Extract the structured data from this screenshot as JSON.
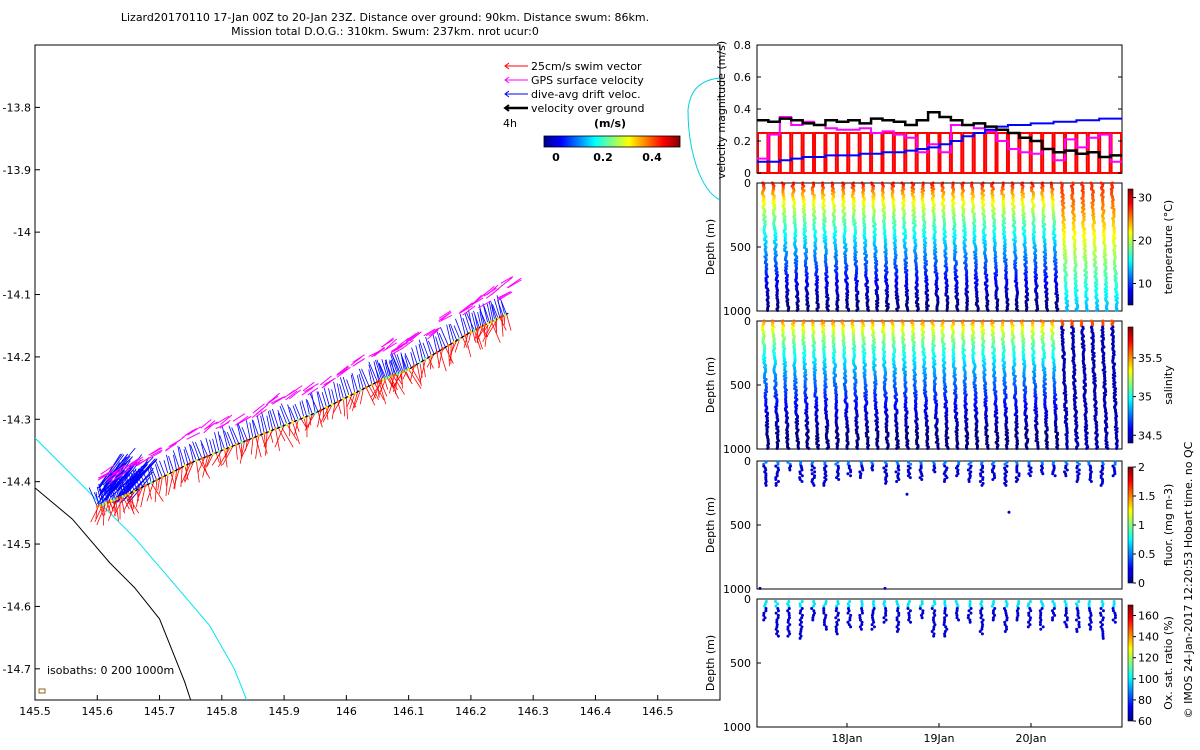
{
  "header": {
    "title_line1": "Lizard20170110 17-Jan 00Z to 20-Jan 23Z. Distance over ground: 90km. Distance swum: 86km.",
    "title_line2": "Mission total D.O.G.: 310km. Swum: 237km. nrot ucur:0"
  },
  "footer_stamp": "© IMOS 24-Jan-2017 12:20:53 Hobart time. no QC",
  "chart_data": [
    {
      "type": "scatter",
      "name": "glider-track-map",
      "xlim": [
        145.5,
        146.6
      ],
      "ylim": [
        -14.75,
        -13.7
      ],
      "xticks": [
        "145.5",
        "145.6",
        "145.7",
        "145.8",
        "145.9",
        "146",
        "146.1",
        "146.2",
        "146.3",
        "146.4",
        "146.5"
      ],
      "yticks": [
        "-13.8",
        "-13.9",
        "-14",
        "-14.1",
        "-14.2",
        "-14.3",
        "-14.4",
        "-14.5",
        "-14.6",
        "-14.7"
      ],
      "track": [
        [
          145.6,
          -14.44
        ],
        [
          145.65,
          -14.42
        ],
        [
          145.75,
          -14.37
        ],
        [
          145.85,
          -14.33
        ],
        [
          145.95,
          -14.29
        ],
        [
          146.05,
          -14.24
        ],
        [
          146.1,
          -14.22
        ],
        [
          146.2,
          -14.16
        ],
        [
          146.26,
          -14.13
        ]
      ],
      "isobath_200": [
        [
          145.5,
          -14.33
        ],
        [
          145.58,
          -14.41
        ],
        [
          145.66,
          -14.49
        ],
        [
          145.72,
          -14.56
        ],
        [
          145.78,
          -14.63
        ],
        [
          145.82,
          -14.7
        ],
        [
          145.84,
          -14.75
        ]
      ],
      "isobath_1000": [
        [
          145.5,
          -14.41
        ],
        [
          145.56,
          -14.46
        ],
        [
          145.62,
          -14.53
        ],
        [
          145.66,
          -14.57
        ],
        [
          145.7,
          -14.62
        ],
        [
          145.72,
          -14.67
        ],
        [
          145.74,
          -14.72
        ],
        [
          145.75,
          -14.75
        ]
      ],
      "legend": [
        {
          "label": "25cm/s swim vector",
          "color": "#ff0000"
        },
        {
          "label": "GPS surface velocity",
          "color": "#ff00ff"
        },
        {
          "label": "dive-avg drift veloc.",
          "color": "#0000ff"
        },
        {
          "label": "velocity over ground",
          "color": "#000000"
        }
      ],
      "legend_note": "4h",
      "colorbar": {
        "label": "(m/s)",
        "ticks": [
          "0",
          "0.2",
          "0.4"
        ],
        "range": [
          0,
          0.5
        ]
      },
      "isobath_note": "isobaths: 0   200  1000m"
    },
    {
      "type": "line",
      "name": "velocity-magnitude",
      "ylabel": "velocity magnitude (m/s)",
      "ylim": [
        0,
        0.8
      ],
      "yticks": [
        "0",
        "0.2",
        "0.4",
        "0.6",
        "0.8"
      ],
      "xlim": [
        0,
        4
      ],
      "series": [
        {
          "color": "#000000",
          "values": [
            0.33,
            0.32,
            0.34,
            0.33,
            0.31,
            0.3,
            0.33,
            0.32,
            0.33,
            0.31,
            0.34,
            0.33,
            0.32,
            0.3,
            0.33,
            0.38,
            0.35,
            0.33,
            0.3,
            0.31,
            0.29,
            0.27,
            0.25,
            0.22,
            0.2,
            0.15,
            0.13,
            0.14,
            0.12,
            0.13,
            0.1,
            0.11
          ]
        },
        {
          "color": "#0000ff",
          "values": [
            0.07,
            0.07,
            0.08,
            0.09,
            0.1,
            0.1,
            0.11,
            0.11,
            0.11,
            0.12,
            0.12,
            0.13,
            0.13,
            0.14,
            0.15,
            0.16,
            0.18,
            0.2,
            0.23,
            0.25,
            0.27,
            0.29,
            0.3,
            0.3,
            0.31,
            0.31,
            0.32,
            0.32,
            0.33,
            0.33,
            0.34,
            0.34
          ]
        },
        {
          "color": "#ff00ff",
          "values": [
            0.09,
            0.24,
            0.35,
            0.3,
            0.32,
            0.3,
            0.28,
            0.27,
            0.27,
            0.28,
            0.25,
            0.26,
            0.24,
            0.22,
            0.13,
            0.18,
            0.13,
            0.3,
            0.3,
            0.28,
            0.26,
            0.2,
            0.15,
            0.13,
            0.12,
            0.15,
            0.08,
            0.21,
            0.16,
            0.22,
            0.24,
            0.07
          ]
        },
        {
          "color": "#ff0000",
          "values": [
            0.25,
            0.25,
            0.25,
            0.25,
            0.25,
            0.25,
            0.25,
            0.25,
            0.25,
            0.25,
            0.25,
            0.25,
            0.25,
            0.25,
            0.25,
            0.25,
            0.25,
            0.25,
            0.25,
            0.25,
            0.25,
            0.25,
            0.25,
            0.25,
            0.25,
            0.25,
            0.25,
            0.25,
            0.25,
            0.25,
            0.25,
            0.25
          ]
        }
      ]
    },
    {
      "type": "scatter",
      "name": "temperature-section",
      "ylabel": "Depth (m)",
      "yticks": [
        "0",
        "500",
        "1000"
      ],
      "ylim": [
        1000,
        0
      ],
      "colorbar": {
        "label": "temperature (°C)",
        "ticks": [
          "30",
          "20",
          "10"
        ],
        "range": [
          5,
          32
        ]
      },
      "profiles": 36
    },
    {
      "type": "scatter",
      "name": "salinity-section",
      "ylabel": "Depth (m)",
      "yticks": [
        "0",
        "500",
        "1000"
      ],
      "ylim": [
        1000,
        0
      ],
      "colorbar": {
        "label": "salinity",
        "ticks": [
          "35.5",
          "35",
          "34.5"
        ],
        "range": [
          34.4,
          35.9
        ]
      },
      "profiles": 36
    },
    {
      "type": "scatter",
      "name": "fluorescence-section",
      "ylabel": "Depth (m)",
      "yticks": [
        "0",
        "500",
        "1000"
      ],
      "ylim": [
        1000,
        0
      ],
      "colorbar": {
        "label": "fluor. (mg m-3)",
        "ticks": [
          "2",
          "1.5",
          "1",
          "0.5",
          "0"
        ],
        "range": [
          0,
          2
        ]
      },
      "profiles": 30
    },
    {
      "type": "scatter",
      "name": "oxygen-section",
      "ylabel": "Depth (m)",
      "yticks": [
        "0",
        "500",
        "1000"
      ],
      "ylim": [
        1000,
        0
      ],
      "xticks": [
        "18Jan",
        "19Jan",
        "20Jan"
      ],
      "colorbar": {
        "label": "Ox. sat. ratio (%)",
        "ticks": [
          "160",
          "140",
          "120",
          "100",
          "80",
          "60"
        ],
        "range": [
          60,
          170
        ]
      },
      "profiles": 30
    }
  ]
}
